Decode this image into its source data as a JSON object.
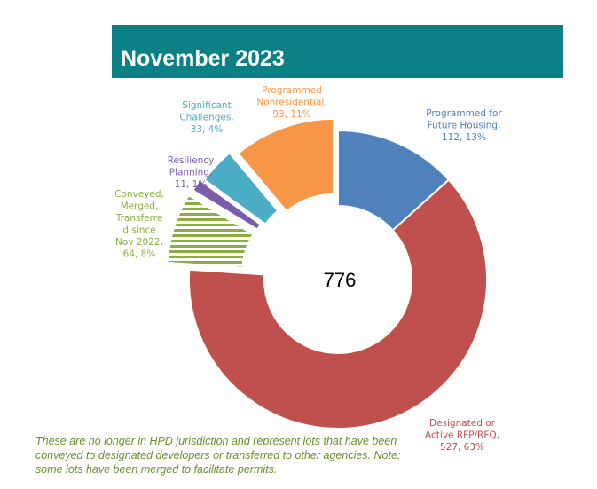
{
  "title": "November 2023",
  "center_total": "776",
  "footnote": "These are no longer in HPD jurisdiction and represent lots that have been conveyed to designated developers or transferred to other agencies. Note: some lots have been merged to facilitate permits.",
  "chart_data": {
    "type": "pie",
    "variant": "donut",
    "title": "November 2023",
    "total": 776,
    "slices": [
      {
        "label_lines": [
          "Programmed for",
          "Future Housing,",
          "112, 13%"
        ],
        "value": 112,
        "percent": 13,
        "color": "#4f81bd",
        "exploded": false
      },
      {
        "label_lines": [
          "Designated or",
          "Active RFP/RFQ,",
          "527, 63%"
        ],
        "value": 527,
        "percent": 63,
        "color": "#c0504d",
        "exploded": false
      },
      {
        "label_lines": [
          "Conveyed,",
          "Merged,",
          "Transferre",
          "d since",
          "Nov 2022,",
          "64, 8%"
        ],
        "value": 64,
        "percent": 8,
        "color": "#8aaf3e",
        "exploded": true,
        "pattern": "horizontal-stripes"
      },
      {
        "label_lines": [
          "Resiliency",
          "Planning,",
          "11, 1%"
        ],
        "value": 11,
        "percent": 1,
        "color": "#7b5ea8",
        "exploded": true
      },
      {
        "label_lines": [
          "Significant",
          "Challenges,",
          "33, 4%"
        ],
        "value": 33,
        "percent": 4,
        "color": "#4bacc6",
        "exploded": true
      },
      {
        "label_lines": [
          "Programmed",
          "Nonresidential,",
          "93, 11%"
        ],
        "value": 93,
        "percent": 11,
        "color": "#f79646",
        "exploded": true
      }
    ]
  }
}
